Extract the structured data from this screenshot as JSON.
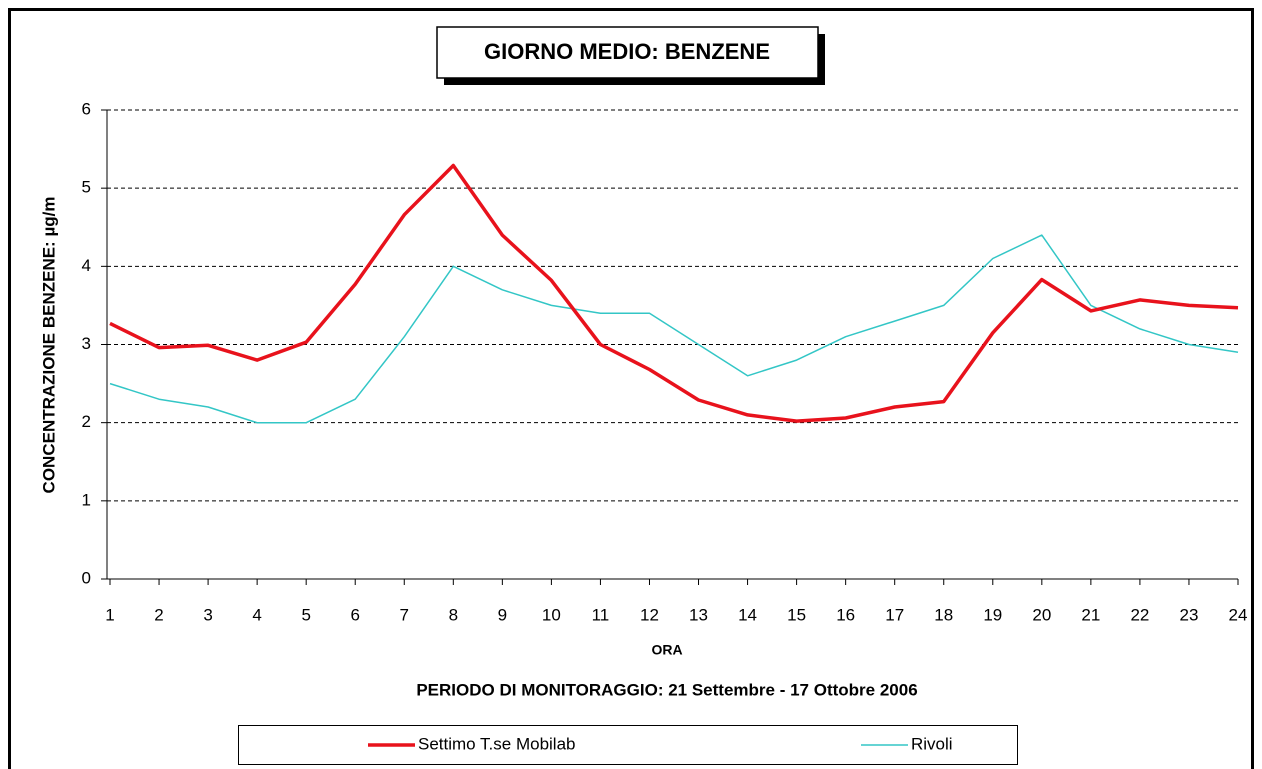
{
  "chart_data": {
    "type": "line",
    "title": "GIORNO MEDIO: BENZENE",
    "y_label": "CONCENTRAZIONE BENZENE: µg/m",
    "x_label": "ORA",
    "subtitle": "PERIODO DI MONITORAGGIO: 21 Settembre - 17 Ottobre 2006",
    "categories": [
      "1",
      "2",
      "3",
      "4",
      "5",
      "6",
      "7",
      "8",
      "9",
      "10",
      "11",
      "12",
      "13",
      "14",
      "15",
      "16",
      "17",
      "18",
      "19",
      "20",
      "21",
      "22",
      "23",
      "24"
    ],
    "series": [
      {
        "name": "Settimo T.se Mobilab",
        "color": "#e8121c",
        "width": 3.5,
        "values": [
          3.27,
          2.96,
          2.99,
          2.8,
          3.03,
          3.77,
          4.66,
          5.29,
          4.4,
          3.82,
          3.0,
          2.68,
          2.29,
          2.1,
          2.02,
          2.06,
          2.2,
          2.27,
          3.15,
          3.83,
          3.43,
          3.57,
          3.5,
          3.47
        ]
      },
      {
        "name": "Rivoli",
        "color": "#33c6c6",
        "width": 1.5,
        "values": [
          2.5,
          2.3,
          2.2,
          2.0,
          2.0,
          2.3,
          3.1,
          4.0,
          3.7,
          3.5,
          3.4,
          3.4,
          3.0,
          2.6,
          2.8,
          3.1,
          3.3,
          3.5,
          4.1,
          4.4,
          3.5,
          3.2,
          3.0,
          2.9
        ]
      }
    ],
    "ylim": [
      0,
      6
    ],
    "yticks": [
      0,
      1,
      2,
      3,
      4,
      5,
      6
    ],
    "grid": true
  }
}
